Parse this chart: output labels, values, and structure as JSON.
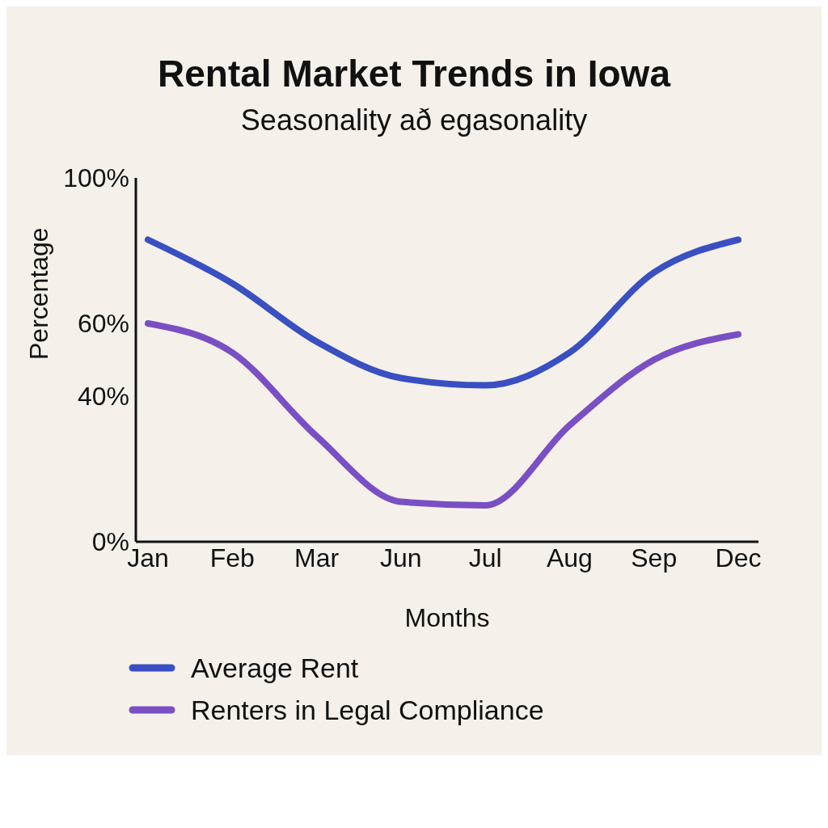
{
  "chart_data": {
    "type": "line",
    "title": "Rental Market Trends in Iowa",
    "subtitle": "Seasonality að egasonality",
    "xlabel": "Months",
    "ylabel": "Percentage",
    "categories": [
      "Jan",
      "Feb",
      "Mar",
      "Jun",
      "Jul",
      "Aug",
      "Sep",
      "Dec"
    ],
    "series": [
      {
        "name": "Average Rent",
        "color": "#3a4fc2",
        "values": [
          83,
          71,
          55,
          45,
          43,
          52,
          74,
          83
        ]
      },
      {
        "name": "Renters in Legal Compliance",
        "color": "#7a4fc4",
        "values": [
          60,
          52,
          29,
          11,
          10,
          32,
          50,
          57
        ]
      }
    ],
    "ylim": [
      0,
      100
    ],
    "yticks": [
      {
        "value": 0,
        "label": "0%"
      },
      {
        "value": 40,
        "label": "40%"
      },
      {
        "value": 60,
        "label": "60%"
      },
      {
        "value": 100,
        "label": "100%"
      }
    ],
    "grid": false,
    "legend": "bottom left",
    "marker": "none",
    "line_style": "solid"
  }
}
